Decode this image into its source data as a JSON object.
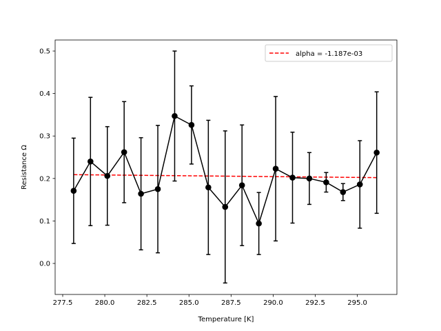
{
  "chart_data": {
    "type": "line",
    "title": "",
    "xlabel": "Temperature [K]",
    "ylabel": "Resistance Ω",
    "xlim": [
      277.05,
      297.35
    ],
    "ylim": [
      -0.073,
      0.526
    ],
    "grid": false,
    "legend_position": "top-right",
    "x_ticks": [
      {
        "value": 277.5,
        "label": "277.5"
      },
      {
        "value": 280.0,
        "label": "280.0"
      },
      {
        "value": 282.5,
        "label": "282.5"
      },
      {
        "value": 285.0,
        "label": "285.0"
      },
      {
        "value": 287.5,
        "label": "287.5"
      },
      {
        "value": 290.0,
        "label": "290.0"
      },
      {
        "value": 292.5,
        "label": "292.5"
      },
      {
        "value": 295.0,
        "label": "295.0"
      }
    ],
    "y_ticks": [
      {
        "value": 0.0,
        "label": "0.0"
      },
      {
        "value": 0.1,
        "label": "0.1"
      },
      {
        "value": 0.2,
        "label": "0.2"
      },
      {
        "value": 0.3,
        "label": "0.3"
      },
      {
        "value": 0.4,
        "label": "0.4"
      },
      {
        "value": 0.5,
        "label": "0.5"
      }
    ],
    "series": [
      {
        "kind": "errorbar",
        "color": "#000000",
        "x": [
          278.15,
          279.15,
          280.15,
          281.15,
          282.15,
          283.15,
          284.15,
          285.15,
          286.15,
          287.15,
          288.15,
          289.15,
          290.15,
          291.15,
          292.15,
          293.15,
          294.15,
          295.15,
          296.15
        ],
        "y": [
          0.171,
          0.24,
          0.206,
          0.262,
          0.164,
          0.175,
          0.347,
          0.326,
          0.179,
          0.133,
          0.184,
          0.094,
          0.223,
          0.202,
          0.2,
          0.191,
          0.168,
          0.186,
          0.261
        ],
        "yerr": [
          0.124,
          0.151,
          0.116,
          0.119,
          0.132,
          0.15,
          0.153,
          0.092,
          0.158,
          0.179,
          0.142,
          0.073,
          0.17,
          0.107,
          0.061,
          0.023,
          0.02,
          0.103,
          0.143
        ]
      },
      {
        "name": "alpha = -1.187e-03",
        "kind": "fit",
        "color": "#ff0000",
        "style": "dashed",
        "x": [
          278.15,
          296.15
        ],
        "y": [
          0.209,
          0.202
        ]
      }
    ]
  }
}
